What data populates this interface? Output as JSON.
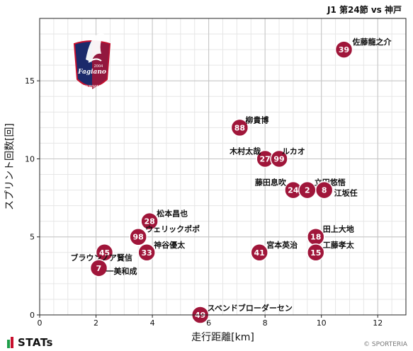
{
  "match_title": "J1 第24節 vs 神戸",
  "brand": {
    "stats_text": "STATs",
    "copyright": "© SPORTERIA"
  },
  "team_logo": {
    "icon": "fagiano-okayama-crest-icon",
    "text": "Fagiano",
    "subtext": "OKAYAMA",
    "year": "2004"
  },
  "colors": {
    "marker": "#A0163A",
    "marker_text": "#ffffff",
    "stats_green": "#1E9E4A",
    "stats_red": "#C8102E"
  },
  "chart_data": {
    "type": "scatter",
    "xlabel": "走行距離[km]",
    "ylabel": "スプリント回数[回]",
    "xlim": [
      0,
      13
    ],
    "ylim": [
      0,
      19
    ],
    "xticks": [
      0,
      2,
      4,
      6,
      8,
      10,
      12
    ],
    "yticks": [
      0,
      5,
      10,
      15
    ],
    "grid": true,
    "points": [
      {
        "number": "39",
        "name": "佐藤龍之介",
        "x": 10.8,
        "y": 17
      },
      {
        "number": "88",
        "name": "柳貴博",
        "x": 7.1,
        "y": 12
      },
      {
        "number": "27",
        "name": "木村太哉",
        "x": 8.0,
        "y": 10
      },
      {
        "number": "99",
        "name": "ルカオ",
        "x": 8.5,
        "y": 10
      },
      {
        "number": "24",
        "name": "藤田息吹",
        "x": 9.0,
        "y": 8
      },
      {
        "number": "2",
        "name": "立田悠悟",
        "x": 9.5,
        "y": 8
      },
      {
        "number": "8",
        "name": "江坂任",
        "x": 10.1,
        "y": 8
      },
      {
        "number": "28",
        "name": "松本昌也",
        "x": 3.9,
        "y": 6
      },
      {
        "number": "98",
        "name": "ウェリックポポ",
        "x": 3.5,
        "y": 5
      },
      {
        "number": "18",
        "name": "田上大地",
        "x": 9.8,
        "y": 5
      },
      {
        "number": "45",
        "name": "ブラウンノア賢信",
        "x": 2.3,
        "y": 4
      },
      {
        "number": "33",
        "name": "神谷優太",
        "x": 3.8,
        "y": 4
      },
      {
        "number": "41",
        "name": "宮本英治",
        "x": 7.8,
        "y": 4
      },
      {
        "number": "15",
        "name": "工藤孝太",
        "x": 9.8,
        "y": 4
      },
      {
        "number": "7",
        "name": "一美和成",
        "x": 2.1,
        "y": 3
      },
      {
        "number": "49",
        "name": "スベンドブローダーセン",
        "x": 5.7,
        "y": 0
      }
    ]
  }
}
